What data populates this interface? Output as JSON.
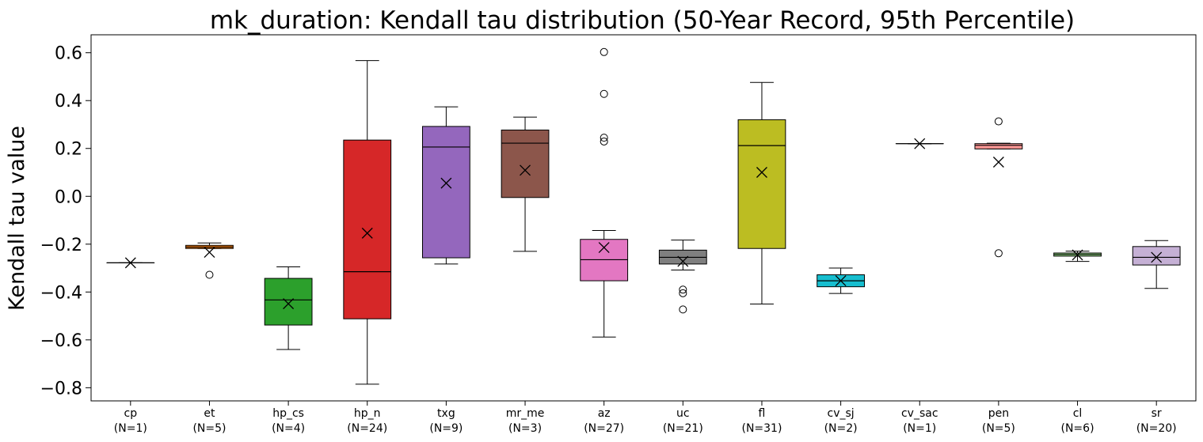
{
  "chart_data": {
    "type": "box",
    "title": "mk_duration: Kendall tau distribution (50-Year Record, 95th Percentile)",
    "xlabel": "",
    "ylabel": "Kendall tau value",
    "ylim": [
      -0.855,
      0.675
    ],
    "yticks": [
      -0.8,
      -0.6,
      -0.4,
      -0.2,
      0.0,
      0.2,
      0.4,
      0.6
    ],
    "ytick_labels": [
      "−0.8",
      "−0.6",
      "−0.4",
      "−0.2",
      "0.0",
      "0.2",
      "0.4",
      "0.6"
    ],
    "mean_marker": "x",
    "grid": false,
    "groups": [
      {
        "name": "cp",
        "n_label": "(N=1)",
        "color": "#1f77b4",
        "q1": -0.278,
        "median": -0.278,
        "q3": -0.278,
        "whisker_low": -0.278,
        "whisker_high": -0.278,
        "mean": -0.278,
        "outliers": []
      },
      {
        "name": "et",
        "n_label": "(N=5)",
        "color": "#ff7f0e",
        "q1": -0.218,
        "median": -0.212,
        "q3": -0.205,
        "whisker_low": -0.218,
        "whisker_high": -0.195,
        "mean": -0.234,
        "outliers": [
          -0.328
        ]
      },
      {
        "name": "hp_cs",
        "n_label": "(N=4)",
        "color": "#2ca02c",
        "q1": -0.538,
        "median": -0.433,
        "q3": -0.343,
        "whisker_low": -0.64,
        "whisker_high": -0.295,
        "mean": -0.449,
        "outliers": []
      },
      {
        "name": "hp_n",
        "n_label": "(N=24)",
        "color": "#d62728",
        "q1": -0.512,
        "median": -0.315,
        "q3": 0.235,
        "whisker_low": -0.785,
        "whisker_high": 0.567,
        "mean": -0.154,
        "outliers": []
      },
      {
        "name": "txg",
        "n_label": "(N=9)",
        "color": "#9467bd",
        "q1": -0.257,
        "median": 0.206,
        "q3": 0.292,
        "whisker_low": -0.283,
        "whisker_high": 0.374,
        "mean": 0.055,
        "outliers": []
      },
      {
        "name": "mr_me",
        "n_label": "(N=3)",
        "color": "#8c564b",
        "q1": -0.005,
        "median": 0.222,
        "q3": 0.277,
        "whisker_low": -0.23,
        "whisker_high": 0.331,
        "mean": 0.109,
        "outliers": []
      },
      {
        "name": "az",
        "n_label": "(N=27)",
        "color": "#e377c2",
        "q1": -0.353,
        "median": -0.265,
        "q3": -0.18,
        "whisker_low": -0.588,
        "whisker_high": -0.143,
        "mean": -0.214,
        "outliers": [
          0.603,
          0.428,
          0.245,
          0.229
        ]
      },
      {
        "name": "uc",
        "n_label": "(N=21)",
        "color": "#7f7f7f",
        "q1": -0.283,
        "median": -0.255,
        "q3": -0.225,
        "whisker_low": -0.308,
        "whisker_high": -0.183,
        "mean": -0.272,
        "outliers": [
          -0.39,
          -0.405,
          -0.473
        ]
      },
      {
        "name": "fl",
        "n_label": "(N=31)",
        "color": "#bcbd22",
        "q1": -0.218,
        "median": 0.212,
        "q3": 0.32,
        "whisker_low": -0.45,
        "whisker_high": 0.476,
        "mean": 0.1,
        "outliers": []
      },
      {
        "name": "cv_sj",
        "n_label": "(N=2)",
        "color": "#17becf",
        "q1": -0.378,
        "median": -0.353,
        "q3": -0.328,
        "whisker_low": -0.406,
        "whisker_high": -0.3,
        "mean": -0.353,
        "outliers": []
      },
      {
        "name": "cv_sac",
        "n_label": "(N=1)",
        "color": "#1f77b4",
        "q1": 0.22,
        "median": 0.22,
        "q3": 0.22,
        "whisker_low": 0.22,
        "whisker_high": 0.22,
        "mean": 0.22,
        "outliers": []
      },
      {
        "name": "pen",
        "n_label": "(N=5)",
        "color": "#ff9896",
        "q1": 0.198,
        "median": 0.213,
        "q3": 0.22,
        "whisker_low": 0.198,
        "whisker_high": 0.222,
        "mean": 0.143,
        "outliers": [
          0.313,
          -0.238
        ]
      },
      {
        "name": "cl",
        "n_label": "(N=6)",
        "color": "#98df8a",
        "q1": -0.25,
        "median": -0.243,
        "q3": -0.237,
        "whisker_low": -0.272,
        "whisker_high": -0.229,
        "mean": -0.245,
        "outliers": []
      },
      {
        "name": "sr",
        "n_label": "(N=20)",
        "color": "#c5b0d5",
        "q1": -0.287,
        "median": -0.255,
        "q3": -0.21,
        "whisker_low": -0.385,
        "whisker_high": -0.185,
        "mean": -0.255,
        "outliers": []
      }
    ]
  }
}
